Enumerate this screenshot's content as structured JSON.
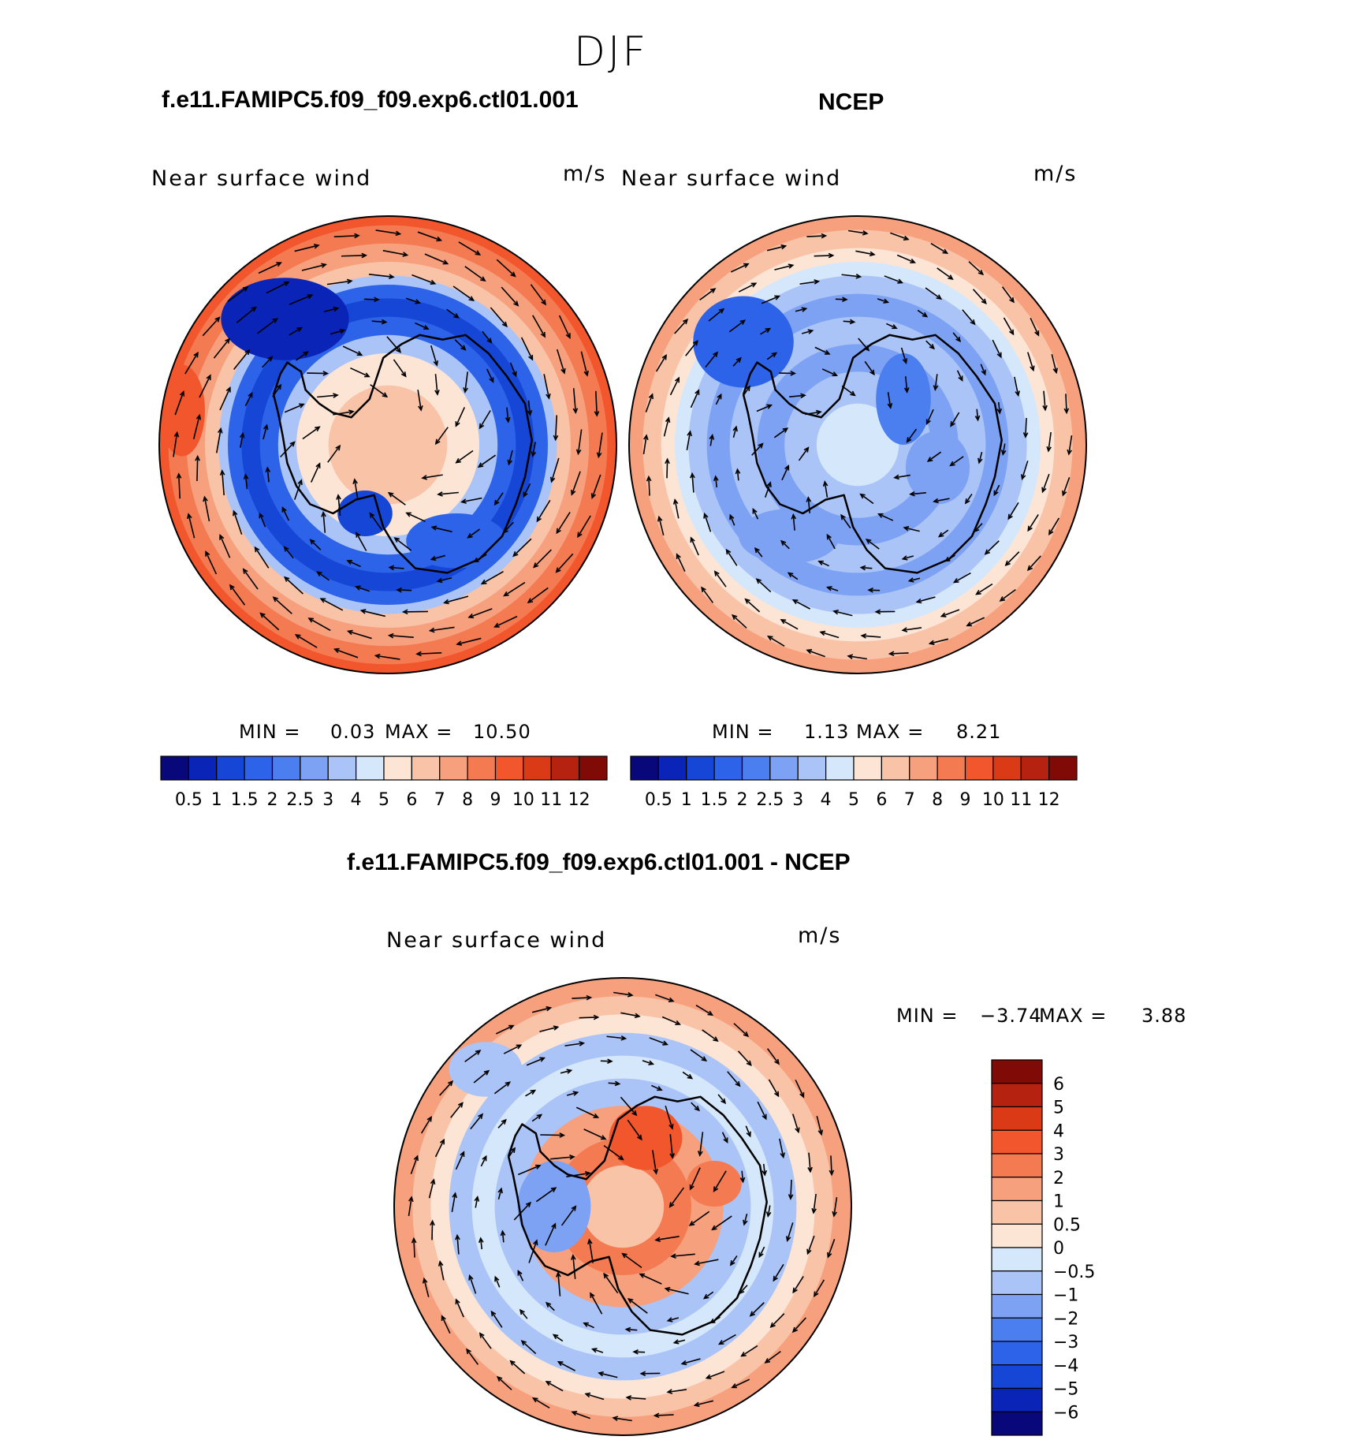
{
  "figure": {
    "season": "DJF"
  },
  "panels": [
    {
      "title": "f.e11.FAMIPC5.f09_f09.exp6.ctl01.001",
      "variable": "Near surface wind",
      "units": "m/s",
      "min_label": "MIN =",
      "min_value": "0.03",
      "max_label": "MAX =",
      "max_value": "10.50"
    },
    {
      "title": "NCEP",
      "variable": "Near surface wind",
      "units": "m/s",
      "min_label": "MIN =",
      "min_value": "1.13",
      "max_label": "MAX =",
      "max_value": "8.21"
    },
    {
      "title": "f.e11.FAMIPC5.f09_f09.exp6.ctl01.001 - NCEP",
      "variable": "Near surface wind",
      "units": "m/s",
      "min_label": "MIN =",
      "min_value": "−3.74",
      "max_label": "MAX =",
      "max_value": "3.88"
    }
  ],
  "chart_data": [
    {
      "type": "heatmap",
      "projection": "south-polar-stereographic",
      "title": "f.e11.FAMIPC5.f09_f09.exp6.ctl01.001",
      "variable": "Near surface wind",
      "units": "m/s",
      "min": 0.03,
      "max": 10.5,
      "colorbar_ticks": [
        "0.5",
        "1",
        "1.5",
        "2",
        "2.5",
        "3",
        "4",
        "5",
        "6",
        "7",
        "8",
        "9",
        "10",
        "11",
        "12"
      ],
      "colorbar_levels": [
        0.5,
        1,
        1.5,
        2,
        2.5,
        3,
        4,
        5,
        6,
        7,
        8,
        9,
        10,
        11,
        12
      ],
      "colorbar_colors": [
        "#08087a",
        "#0a24b8",
        "#1646d6",
        "#2d63e8",
        "#4b7eef",
        "#7ea2f3",
        "#aac4f7",
        "#d5e7fb",
        "#fde5d6",
        "#f9c3a8",
        "#f6a07d",
        "#f47a52",
        "#f1562c",
        "#db3a16",
        "#b52310",
        "#7f0a06"
      ],
      "legend_position": "bottom"
    },
    {
      "type": "heatmap",
      "projection": "south-polar-stereographic",
      "title": "NCEP",
      "variable": "Near surface wind",
      "units": "m/s",
      "min": 1.13,
      "max": 8.21,
      "colorbar_ticks": [
        "0.5",
        "1",
        "1.5",
        "2",
        "2.5",
        "3",
        "4",
        "5",
        "6",
        "7",
        "8",
        "9",
        "10",
        "11",
        "12"
      ],
      "colorbar_levels": [
        0.5,
        1,
        1.5,
        2,
        2.5,
        3,
        4,
        5,
        6,
        7,
        8,
        9,
        10,
        11,
        12
      ],
      "colorbar_colors": [
        "#08087a",
        "#0a24b8",
        "#1646d6",
        "#2d63e8",
        "#4b7eef",
        "#7ea2f3",
        "#aac4f7",
        "#d5e7fb",
        "#fde5d6",
        "#f9c3a8",
        "#f6a07d",
        "#f47a52",
        "#f1562c",
        "#db3a16",
        "#b52310",
        "#7f0a06"
      ],
      "legend_position": "bottom"
    },
    {
      "type": "heatmap",
      "projection": "south-polar-stereographic",
      "title": "f.e11.FAMIPC5.f09_f09.exp6.ctl01.001 - NCEP",
      "variable": "Near surface wind",
      "units": "m/s",
      "min": -3.74,
      "max": 3.88,
      "colorbar_ticks": [
        "6",
        "5",
        "4",
        "3",
        "2",
        "1",
        "0.5",
        "0",
        "−0.5",
        "−1",
        "−2",
        "−3",
        "−4",
        "−5",
        "−6"
      ],
      "colorbar_levels": [
        6,
        5,
        4,
        3,
        2,
        1,
        0.5,
        0,
        -0.5,
        -1,
        -2,
        -3,
        -4,
        -5,
        -6
      ],
      "colorbar_colors": [
        "#7f0a06",
        "#b52310",
        "#db3a16",
        "#f1562c",
        "#f47a52",
        "#f6a07d",
        "#f9c3a8",
        "#fde5d6",
        "#d5e7fb",
        "#aac4f7",
        "#7ea2f3",
        "#4b7eef",
        "#2d63e8",
        "#1646d6",
        "#0a24b8",
        "#08087a"
      ],
      "legend_position": "right"
    }
  ]
}
